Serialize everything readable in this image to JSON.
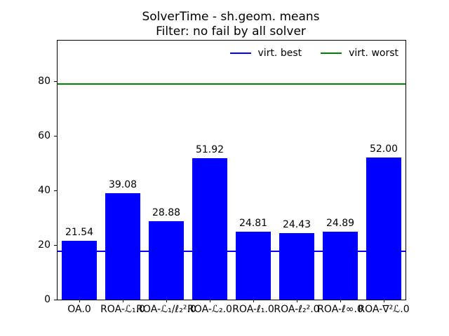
{
  "title": "SolverTime - sh.geom. means",
  "subtitle": "Filter: no fail by all solver",
  "legend": {
    "items": [
      {
        "label": "virt. best",
        "color": "#0000ff"
      },
      {
        "label": "virt. worst",
        "color": "#008000"
      }
    ]
  },
  "colors": {
    "bar": "#0000ff",
    "virt_best_line": "#0000ff",
    "virt_worst_line": "#008000",
    "axis": "#000000",
    "background": "#ffffff"
  },
  "chart_data": {
    "type": "bar",
    "title": "SolverTime - sh.geom. means",
    "subtitle": "Filter: no fail by all solver",
    "categories": [
      "OA.0",
      "ROA-ℒ₁.0",
      "ROA-ℒ₁/ℓ₂².0",
      "ROA-ℒ₂.0",
      "ROA-ℓ₁.0",
      "ROA-ℓ₂².0",
      "ROA-ℓ∞.0",
      "ROA-∇²ℒ.0"
    ],
    "values": [
      21.54,
      39.08,
      28.88,
      51.92,
      24.81,
      24.43,
      24.89,
      52.0
    ],
    "bar_labels": [
      "21.54",
      "39.08",
      "28.88",
      "51.92",
      "24.81",
      "24.43",
      "24.89",
      "52.00"
    ],
    "bar_color": "#0000ff",
    "xlabel": "",
    "ylabel": "",
    "ylim": [
      0,
      95
    ],
    "yticks": [
      0,
      20,
      40,
      60,
      80
    ],
    "hlines": [
      {
        "name": "virt. best",
        "value": 17.6,
        "color": "#0000ff"
      },
      {
        "name": "virt. worst",
        "value": 79.0,
        "color": "#008000"
      }
    ],
    "grid": false,
    "legend_position": "upper right",
    "legend_frame": false
  }
}
